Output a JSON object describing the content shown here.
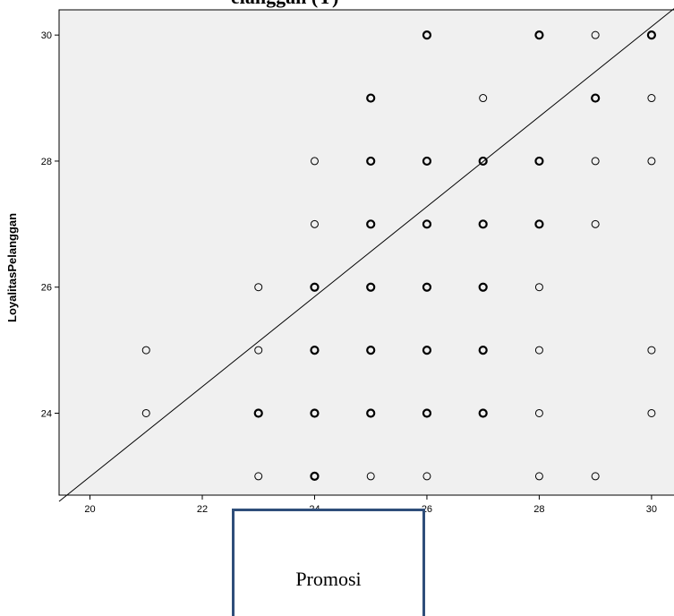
{
  "title_fragment": "elanggan (Y)",
  "chart_data": {
    "type": "scatter",
    "title": "elanggan (Y)",
    "xlabel": "Promosi",
    "ylabel": "LoyalitasPelanggan",
    "xlim": [
      19.45,
      30.4
    ],
    "ylim": [
      22.7,
      30.4
    ],
    "xticks": [
      20,
      22,
      24,
      26,
      28,
      30
    ],
    "yticks": [
      24,
      26,
      28,
      30
    ],
    "grid": false,
    "fit_line": {
      "x": [
        19.45,
        30.4
      ],
      "y": [
        22.6,
        30.42
      ]
    },
    "points": [
      {
        "x": 21,
        "y": 25,
        "weight": 1
      },
      {
        "x": 21,
        "y": 24,
        "weight": 1
      },
      {
        "x": 23,
        "y": 26,
        "weight": 1
      },
      {
        "x": 23,
        "y": 25,
        "weight": 1
      },
      {
        "x": 23,
        "y": 24,
        "weight": 2
      },
      {
        "x": 23,
        "y": 23,
        "weight": 1
      },
      {
        "x": 24,
        "y": 28,
        "weight": 1
      },
      {
        "x": 24,
        "y": 27,
        "weight": 1
      },
      {
        "x": 24,
        "y": 26,
        "weight": 2
      },
      {
        "x": 24,
        "y": 25,
        "weight": 2
      },
      {
        "x": 24,
        "y": 24,
        "weight": 2
      },
      {
        "x": 24,
        "y": 23,
        "weight": 2
      },
      {
        "x": 25,
        "y": 29,
        "weight": 2
      },
      {
        "x": 25,
        "y": 28,
        "weight": 2
      },
      {
        "x": 25,
        "y": 27,
        "weight": 2
      },
      {
        "x": 25,
        "y": 26,
        "weight": 2
      },
      {
        "x": 25,
        "y": 25,
        "weight": 2
      },
      {
        "x": 25,
        "y": 24,
        "weight": 2
      },
      {
        "x": 25,
        "y": 23,
        "weight": 1
      },
      {
        "x": 26,
        "y": 30,
        "weight": 2
      },
      {
        "x": 26,
        "y": 28,
        "weight": 2
      },
      {
        "x": 26,
        "y": 27,
        "weight": 2
      },
      {
        "x": 26,
        "y": 26,
        "weight": 2
      },
      {
        "x": 26,
        "y": 25,
        "weight": 2
      },
      {
        "x": 26,
        "y": 24,
        "weight": 2
      },
      {
        "x": 26,
        "y": 23,
        "weight": 1
      },
      {
        "x": 27,
        "y": 29,
        "weight": 1
      },
      {
        "x": 27,
        "y": 28,
        "weight": 2
      },
      {
        "x": 27,
        "y": 27,
        "weight": 2
      },
      {
        "x": 27,
        "y": 26,
        "weight": 2
      },
      {
        "x": 27,
        "y": 25,
        "weight": 2
      },
      {
        "x": 27,
        "y": 24,
        "weight": 2
      },
      {
        "x": 28,
        "y": 30,
        "weight": 2
      },
      {
        "x": 28,
        "y": 28,
        "weight": 2
      },
      {
        "x": 28,
        "y": 27,
        "weight": 2
      },
      {
        "x": 28,
        "y": 26,
        "weight": 1
      },
      {
        "x": 28,
        "y": 25,
        "weight": 1
      },
      {
        "x": 28,
        "y": 24,
        "weight": 1
      },
      {
        "x": 28,
        "y": 23,
        "weight": 1
      },
      {
        "x": 29,
        "y": 30,
        "weight": 1
      },
      {
        "x": 29,
        "y": 29,
        "weight": 2
      },
      {
        "x": 29,
        "y": 28,
        "weight": 1
      },
      {
        "x": 29,
        "y": 27,
        "weight": 1
      },
      {
        "x": 29,
        "y": 23,
        "weight": 1
      },
      {
        "x": 30,
        "y": 30,
        "weight": 2
      },
      {
        "x": 30,
        "y": 29,
        "weight": 1
      },
      {
        "x": 30,
        "y": 28,
        "weight": 1
      },
      {
        "x": 30,
        "y": 25,
        "weight": 1
      },
      {
        "x": 30,
        "y": 24,
        "weight": 1
      }
    ]
  },
  "colors": {
    "plot_background": "#f0f0f0",
    "marker_stroke": "#000000",
    "fit_line": "#000000",
    "frame": "#000000",
    "xlabel_box_border": "#2f4e7a"
  }
}
